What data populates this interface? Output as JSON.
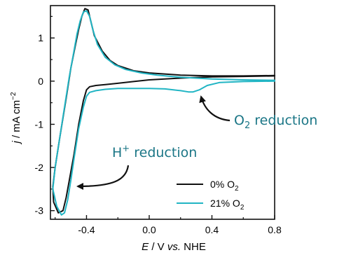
{
  "chart_data": {
    "type": "line",
    "xlabel": {
      "italic": "E",
      "rest": " / V ",
      "italic2": "vs.",
      "rest2": " NHE"
    },
    "ylabel": {
      "italic": "j",
      "rest": " / mA cm",
      "sup": "−2"
    },
    "xlim": [
      -0.63,
      0.8
    ],
    "ylim": [
      -3.2,
      1.75
    ],
    "xticks": [
      -0.4,
      0.0,
      0.4,
      0.8
    ],
    "xtick_labels": [
      "-0.4",
      "0.0",
      "0.4",
      "0.8"
    ],
    "yticks": [
      -3,
      -2,
      -1,
      0,
      1
    ],
    "ytick_labels": [
      "-3",
      "-2",
      "-1",
      "0",
      "1"
    ],
    "grid": false,
    "legend_position": "bottom-right",
    "series": [
      {
        "name": "0% O",
        "name_sub": "2",
        "color": "#111111",
        "x": [
          0.8,
          0.6,
          0.4,
          0.2,
          0.0,
          -0.1,
          -0.2,
          -0.28,
          -0.34,
          -0.38,
          -0.4,
          -0.42,
          -0.45,
          -0.48,
          -0.51,
          -0.53,
          -0.55,
          -0.58,
          -0.61,
          -0.615,
          -0.6,
          -0.57,
          -0.53,
          -0.5,
          -0.47,
          -0.45,
          -0.43,
          -0.41,
          -0.39,
          -0.37,
          -0.35,
          -0.3,
          -0.25,
          -0.2,
          -0.1,
          0.0,
          0.2,
          0.4,
          0.6,
          0.8
        ],
        "y": [
          0.12,
          0.11,
          0.1,
          0.07,
          0.03,
          -0.01,
          -0.05,
          -0.08,
          -0.1,
          -0.13,
          -0.2,
          -0.45,
          -1.0,
          -1.7,
          -2.3,
          -2.7,
          -3.0,
          -3.05,
          -2.8,
          -2.45,
          -2.0,
          -1.3,
          -0.4,
          0.3,
          0.85,
          1.2,
          1.5,
          1.68,
          1.65,
          1.35,
          1.05,
          0.7,
          0.48,
          0.36,
          0.24,
          0.19,
          0.14,
          0.12,
          0.12,
          0.13
        ]
      },
      {
        "name": "21% O",
        "name_sub": "2",
        "color": "#21b5c4",
        "x": [
          0.8,
          0.6,
          0.45,
          0.37,
          0.32,
          0.28,
          0.25,
          0.2,
          0.1,
          0.0,
          -0.1,
          -0.2,
          -0.28,
          -0.34,
          -0.38,
          -0.4,
          -0.42,
          -0.45,
          -0.48,
          -0.5,
          -0.52,
          -0.54,
          -0.56,
          -0.59,
          -0.615,
          -0.6,
          -0.57,
          -0.54,
          -0.51,
          -0.48,
          -0.46,
          -0.44,
          -0.42,
          -0.4,
          -0.38,
          -0.36,
          -0.33,
          -0.28,
          -0.22,
          -0.15,
          -0.05,
          0.05,
          0.2,
          0.4,
          0.6,
          0.8
        ],
        "y": [
          0.0,
          -0.01,
          -0.03,
          -0.1,
          -0.2,
          -0.25,
          -0.25,
          -0.22,
          -0.18,
          -0.17,
          -0.17,
          -0.17,
          -0.19,
          -0.22,
          -0.26,
          -0.35,
          -0.6,
          -1.1,
          -1.8,
          -2.3,
          -2.75,
          -3.05,
          -3.1,
          -2.9,
          -2.5,
          -2.0,
          -1.3,
          -0.6,
          0.1,
          0.7,
          1.1,
          1.4,
          1.6,
          1.63,
          1.5,
          1.2,
          0.85,
          0.55,
          0.38,
          0.27,
          0.19,
          0.14,
          0.09,
          0.05,
          0.03,
          0.02
        ]
      }
    ],
    "annotations": [
      {
        "main": "O",
        "sub": "2",
        "rest": " reduction",
        "color": "#1b7686"
      },
      {
        "main": "H",
        "sup": "+",
        "rest": " reduction",
        "color": "#1b7686"
      }
    ]
  }
}
